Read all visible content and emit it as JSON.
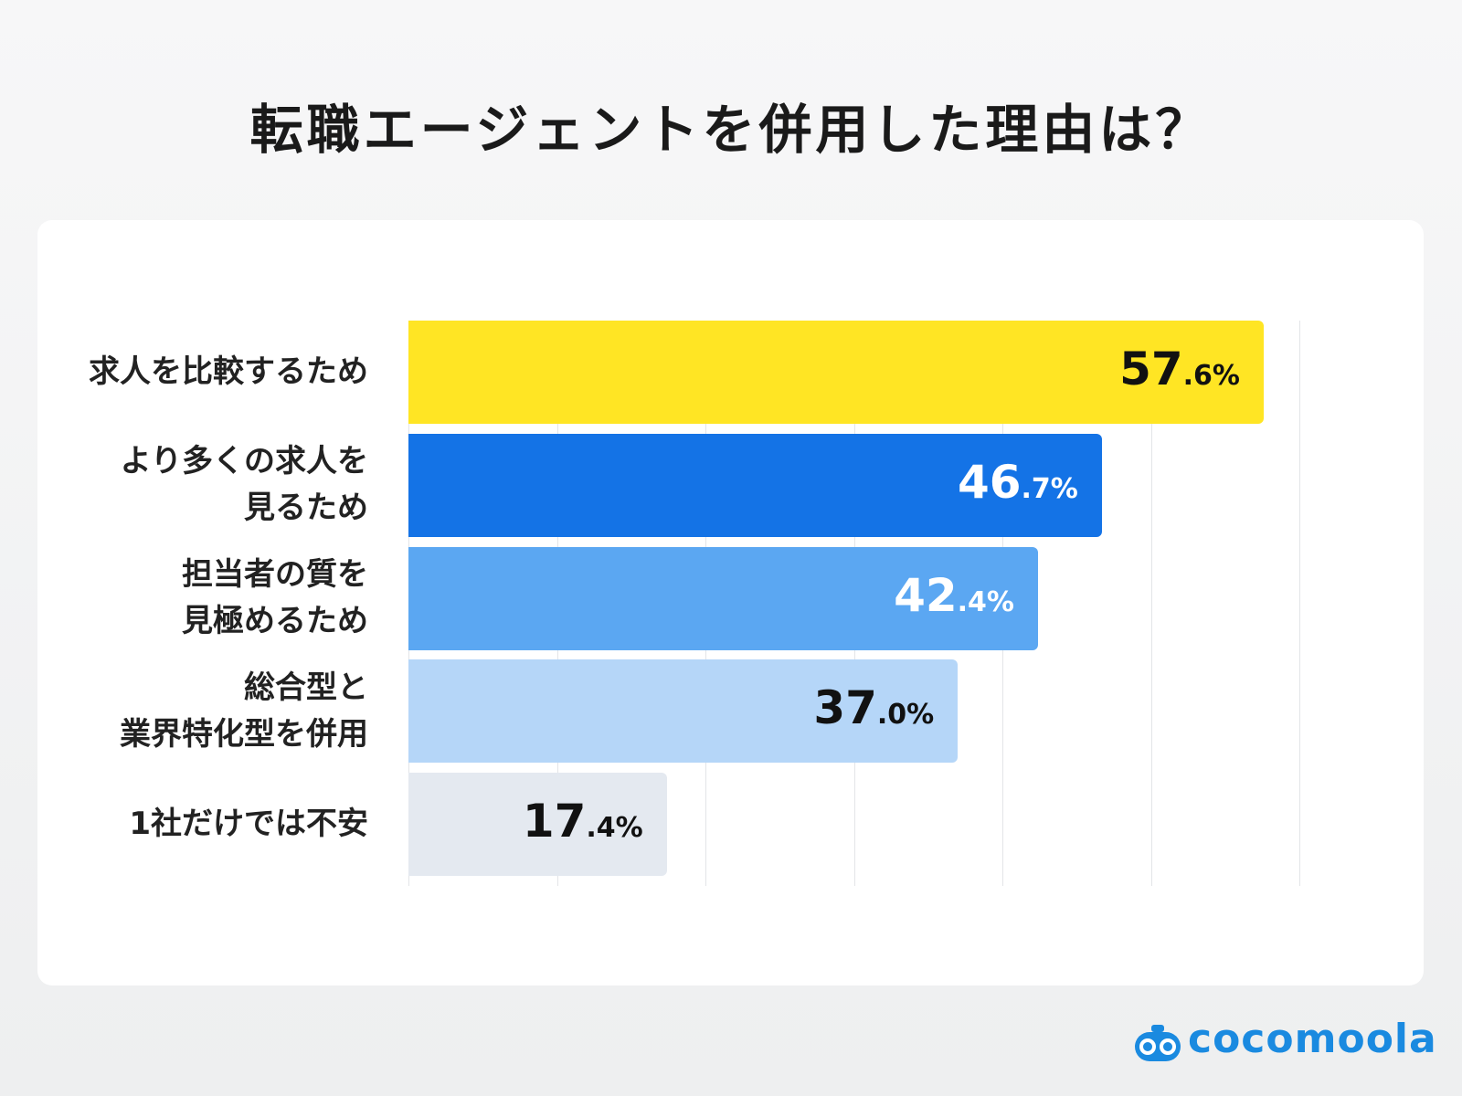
{
  "chart_data": {
    "type": "bar",
    "orientation": "horizontal",
    "title": "転職エージェントを併用した理由は？",
    "categories": [
      "求人を比較するため",
      "より多くの求人を\n見るため",
      "担当者の質を\n見極めるため",
      "総合型と\n業界特化型を併用",
      "1社だけでは不安"
    ],
    "values": [
      57.6,
      46.7,
      42.4,
      37.0,
      17.4
    ],
    "value_labels": [
      "57.6%",
      "46.7%",
      "42.4%",
      "37.0%",
      "17.4%"
    ],
    "colors": [
      "#ffe524",
      "#1473e6",
      "#5ba7f2",
      "#b5d6f8",
      "#e4e9f0"
    ],
    "label_colors": [
      "#111111",
      "#ffffff",
      "#ffffff",
      "#111111",
      "#111111"
    ],
    "xlim": [
      0,
      60
    ],
    "xticks": [
      0,
      10,
      20,
      30,
      40,
      50,
      60
    ],
    "grid": true,
    "brand": "cocomoola"
  }
}
